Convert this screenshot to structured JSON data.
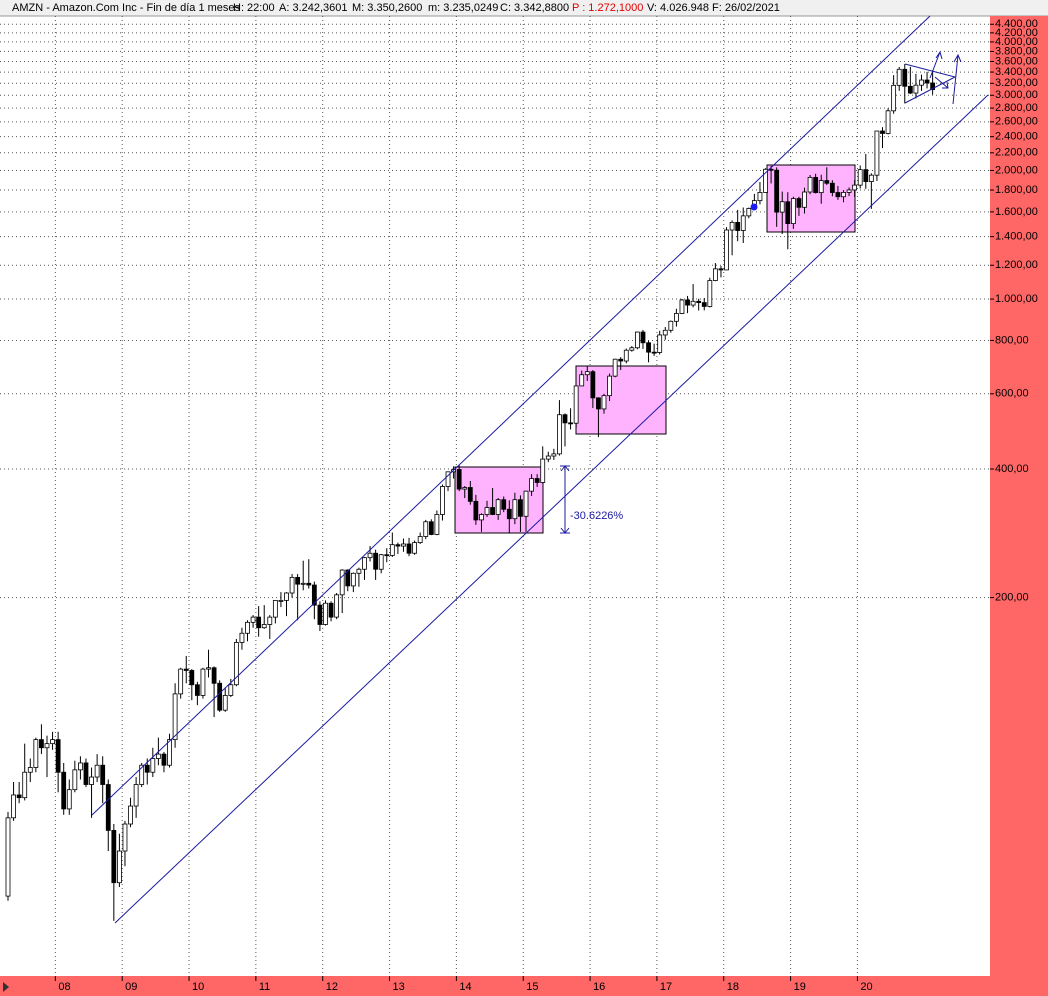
{
  "header": {
    "title": "AMZN - Amazon.Com Inc - Fin de día 1 meses",
    "fields": [
      "H: 22:00",
      "A: 3.242,3601",
      "M: 3.350,2600",
      "m: 3.235,0249",
      "C: 3.342,8800",
      "P : 1.272,1000",
      "V: 4.026.948",
      "F: 26/02/2021"
    ]
  },
  "chart_data": {
    "type": "candlestick",
    "log_scale": true,
    "grid": true,
    "up_color": "#ffffff",
    "down_color": "#000000",
    "ylim": [
      26,
      4600
    ],
    "yticks": [
      {
        "value": 200,
        "label": "200,00"
      },
      {
        "value": 400,
        "label": "400,00"
      },
      {
        "value": 600,
        "label": "600,00"
      },
      {
        "value": 800,
        "label": "800,00"
      },
      {
        "value": 1000,
        "label": "1.000,00"
      },
      {
        "value": 1200,
        "label": "1.200,00"
      },
      {
        "value": 1400,
        "label": "1.400,00"
      },
      {
        "value": 1600,
        "label": "1.600,00"
      },
      {
        "value": 1800,
        "label": "1.800,00"
      },
      {
        "value": 2000,
        "label": "2.000,00"
      },
      {
        "value": 2200,
        "label": "2.200,00"
      },
      {
        "value": 2400,
        "label": "2.400,00"
      },
      {
        "value": 2600,
        "label": "2.600,00"
      },
      {
        "value": 2800,
        "label": "2.800,00"
      },
      {
        "value": 3000,
        "label": "3.000,00"
      },
      {
        "value": 3200,
        "label": "3.200,00"
      },
      {
        "value": 3400,
        "label": "3.400,00"
      },
      {
        "value": 3600,
        "label": "3.600,00"
      },
      {
        "value": 3800,
        "label": "3.800,00"
      },
      {
        "value": 4000,
        "label": "4.000,00"
      },
      {
        "value": 4200,
        "label": "4.200,00"
      },
      {
        "value": 4400,
        "label": "4.400,00"
      }
    ],
    "annotations": [
      "-30.6226%"
    ],
    "categories": [
      null,
      null,
      null,
      null,
      null,
      null,
      null,
      null,
      null,
      "08",
      null,
      null,
      null,
      null,
      null,
      null,
      null,
      null,
      null,
      null,
      null,
      "09",
      null,
      null,
      null,
      null,
      null,
      null,
      null,
      null,
      null,
      null,
      null,
      "10",
      null,
      null,
      null,
      null,
      null,
      null,
      null,
      null,
      null,
      null,
      null,
      "11",
      null,
      null,
      null,
      null,
      null,
      null,
      null,
      null,
      null,
      null,
      null,
      "12",
      null,
      null,
      null,
      null,
      null,
      null,
      null,
      null,
      null,
      null,
      null,
      "13",
      null,
      null,
      null,
      null,
      null,
      null,
      null,
      null,
      null,
      null,
      null,
      "14",
      null,
      null,
      null,
      null,
      null,
      null,
      null,
      null,
      null,
      null,
      null,
      "15",
      null,
      null,
      null,
      null,
      null,
      null,
      null,
      null,
      null,
      null,
      null,
      "16",
      null,
      null,
      null,
      null,
      null,
      null,
      null,
      null,
      null,
      null,
      null,
      "17",
      null,
      null,
      null,
      null,
      null,
      null,
      null,
      null,
      null,
      null,
      null,
      "18",
      null,
      null,
      null,
      null,
      null,
      null,
      null,
      null,
      null,
      null,
      null,
      "19",
      null,
      null,
      null,
      null,
      null,
      null,
      null,
      null,
      null,
      null,
      null,
      "20",
      null,
      null,
      null,
      null,
      null,
      null,
      null,
      null,
      null,
      null,
      null,
      null,
      null
    ],
    "ohlc": [
      [
        40,
        63,
        39,
        61
      ],
      [
        61,
        74,
        60,
        69
      ],
      [
        69,
        74,
        66,
        68
      ],
      [
        68,
        91,
        67,
        78
      ],
      [
        78,
        84,
        74,
        80
      ],
      [
        80,
        94,
        78,
        93
      ],
      [
        93,
        101,
        86,
        89
      ],
      [
        89,
        95,
        76,
        91
      ],
      [
        91,
        97,
        88,
        93
      ],
      [
        93,
        97,
        70,
        78
      ],
      [
        78,
        82,
        62,
        64
      ],
      [
        64,
        75,
        62,
        71
      ],
      [
        71,
        83,
        70,
        79
      ],
      [
        79,
        85,
        75,
        82
      ],
      [
        82,
        84,
        72,
        73
      ],
      [
        73,
        80,
        61,
        76
      ],
      [
        76,
        86,
        74,
        81
      ],
      [
        81,
        85,
        66,
        73
      ],
      [
        73,
        75,
        51,
        57
      ],
      [
        57,
        59,
        35,
        43
      ],
      [
        43,
        56,
        42,
        51
      ],
      [
        51,
        60,
        47,
        59
      ],
      [
        59,
        68,
        58,
        65
      ],
      [
        65,
        76,
        61,
        73
      ],
      [
        73,
        82,
        72,
        81
      ],
      [
        81,
        84,
        73,
        78
      ],
      [
        78,
        89,
        76,
        84
      ],
      [
        84,
        94,
        81,
        86
      ],
      [
        86,
        87,
        78,
        81
      ],
      [
        81,
        96,
        80,
        93
      ],
      [
        93,
        126,
        89,
        119
      ],
      [
        119,
        137,
        116,
        136
      ],
      [
        136,
        146,
        126,
        135
      ],
      [
        135,
        136,
        115,
        125
      ],
      [
        125,
        127,
        112,
        118
      ],
      [
        118,
        137,
        116,
        136
      ],
      [
        136,
        151,
        130,
        137
      ],
      [
        137,
        138,
        105,
        126
      ],
      [
        126,
        128,
        108,
        109
      ],
      [
        109,
        123,
        108,
        118
      ],
      [
        118,
        129,
        117,
        125
      ],
      [
        125,
        160,
        124,
        157
      ],
      [
        157,
        170,
        151,
        165
      ],
      [
        165,
        177,
        158,
        175
      ],
      [
        175,
        182,
        170,
        180
      ],
      [
        180,
        191,
        162,
        170
      ],
      [
        170,
        192,
        169,
        173
      ],
      [
        173,
        182,
        160,
        180
      ],
      [
        180,
        197,
        174,
        197
      ],
      [
        197,
        206,
        190,
        197
      ],
      [
        197,
        206,
        181,
        205
      ],
      [
        205,
        227,
        200,
        223
      ],
      [
        223,
        227,
        177,
        215
      ],
      [
        215,
        244,
        208,
        216
      ],
      [
        216,
        246,
        210,
        214
      ],
      [
        214,
        218,
        178,
        192
      ],
      [
        192,
        196,
        167,
        173
      ],
      [
        173,
        197,
        172,
        194
      ],
      [
        194,
        196,
        176,
        180
      ],
      [
        180,
        205,
        178,
        203
      ],
      [
        203,
        233,
        184,
        232
      ],
      [
        232,
        233,
        207,
        213
      ],
      [
        213,
        229,
        206,
        228
      ],
      [
        228,
        235,
        212,
        233
      ],
      [
        233,
        249,
        220,
        248
      ],
      [
        248,
        264,
        243,
        254
      ],
      [
        254,
        259,
        220,
        233
      ],
      [
        233,
        253,
        228,
        252
      ],
      [
        252,
        261,
        242,
        251
      ],
      [
        251,
        284,
        249,
        266
      ],
      [
        266,
        269,
        253,
        264
      ],
      [
        264,
        275,
        256,
        267
      ],
      [
        267,
        276,
        250,
        254
      ],
      [
        254,
        272,
        252,
        269
      ],
      [
        269,
        284,
        267,
        278
      ],
      [
        278,
        304,
        274,
        301
      ],
      [
        301,
        305,
        280,
        281
      ],
      [
        281,
        320,
        280,
        313
      ],
      [
        313,
        368,
        303,
        364
      ],
      [
        364,
        394,
        355,
        394
      ],
      [
        394,
        406,
        380,
        399
      ],
      [
        399,
        408,
        355,
        359
      ],
      [
        359,
        365,
        342,
        362
      ],
      [
        362,
        375,
        330,
        336
      ],
      [
        336,
        348,
        296,
        304
      ],
      [
        304,
        315,
        285,
        313
      ],
      [
        313,
        337,
        309,
        325
      ],
      [
        325,
        361,
        312,
        313
      ],
      [
        313,
        342,
        304,
        339
      ],
      [
        339,
        345,
        317,
        322
      ],
      [
        322,
        338,
        284,
        306
      ],
      [
        306,
        352,
        297,
        339
      ],
      [
        339,
        347,
        285,
        310
      ],
      [
        310,
        356,
        285,
        355
      ],
      [
        355,
        389,
        346,
        380
      ],
      [
        380,
        389,
        363,
        372
      ],
      [
        372,
        452,
        370,
        422
      ],
      [
        422,
        439,
        415,
        429
      ],
      [
        429,
        446,
        420,
        434
      ],
      [
        434,
        580,
        430,
        536
      ],
      [
        536,
        540,
        452,
        513
      ],
      [
        513,
        555,
        495,
        512
      ],
      [
        512,
        627,
        500,
        626
      ],
      [
        626,
        680,
        626,
        665
      ],
      [
        665,
        696,
        643,
        676
      ],
      [
        676,
        682,
        556,
        587
      ],
      [
        587,
        589,
        475,
        553
      ],
      [
        553,
        600,
        539,
        594
      ],
      [
        594,
        669,
        577,
        660
      ],
      [
        660,
        725,
        656,
        723
      ],
      [
        723,
        731,
        682,
        716
      ],
      [
        716,
        766,
        707,
        759
      ],
      [
        759,
        776,
        753,
        769
      ],
      [
        769,
        838,
        763,
        837
      ],
      [
        837,
        847,
        764,
        790
      ],
      [
        790,
        799,
        711,
        751
      ],
      [
        751,
        786,
        736,
        750
      ],
      [
        750,
        843,
        742,
        824
      ],
      [
        824,
        860,
        803,
        845
      ],
      [
        845,
        891,
        834,
        887
      ],
      [
        887,
        949,
        862,
        925
      ],
      [
        925,
        1001,
        922,
        995
      ],
      [
        995,
        1017,
        927,
        968
      ],
      [
        968,
        1084,
        956,
        988
      ],
      [
        988,
        1002,
        940,
        981
      ],
      [
        981,
        1006,
        941,
        961
      ],
      [
        961,
        1122,
        956,
        1105
      ],
      [
        1105,
        1214,
        1101,
        1177
      ],
      [
        1177,
        1195,
        1124,
        1170
      ],
      [
        1170,
        1473,
        1170,
        1451
      ],
      [
        1451,
        1528,
        1266,
        1512
      ],
      [
        1512,
        1617,
        1366,
        1447
      ],
      [
        1447,
        1638,
        1353,
        1566
      ],
      [
        1566,
        1638,
        1546,
        1630
      ],
      [
        1630,
        1763,
        1622,
        1700
      ],
      [
        1700,
        1880,
        1666,
        1777
      ],
      [
        1777,
        2025,
        1777,
        2013
      ],
      [
        2013,
        2050,
        1865,
        2003
      ],
      [
        2003,
        2034,
        1476,
        1598
      ],
      [
        1598,
        1785,
        1420,
        1690
      ],
      [
        1690,
        1779,
        1308,
        1502
      ],
      [
        1502,
        1736,
        1460,
        1719
      ],
      [
        1719,
        1736,
        1566,
        1640
      ],
      [
        1640,
        1823,
        1586,
        1781
      ],
      [
        1781,
        1952,
        1760,
        1927
      ],
      [
        1927,
        1965,
        1767,
        1775
      ],
      [
        1775,
        1955,
        1672,
        1894
      ],
      [
        1894,
        2035,
        1850,
        1867
      ],
      [
        1867,
        1898,
        1740,
        1776
      ],
      [
        1776,
        1840,
        1707,
        1736
      ],
      [
        1736,
        1799,
        1685,
        1777
      ],
      [
        1777,
        1825,
        1742,
        1801
      ],
      [
        1801,
        1901,
        1735,
        1848
      ],
      [
        1848,
        2055,
        1815,
        2009
      ],
      [
        2009,
        2186,
        1811,
        1884
      ],
      [
        1884,
        1970,
        1626,
        1950
      ],
      [
        1950,
        2475,
        1890,
        2474
      ],
      [
        2474,
        2526,
        2256,
        2442
      ],
      [
        2442,
        2796,
        2430,
        2759
      ],
      [
        2759,
        3344,
        2716,
        3165
      ],
      [
        3165,
        3495,
        3073,
        3451
      ],
      [
        3451,
        3552,
        2871,
        3149
      ],
      [
        3149,
        3497,
        3020,
        3036
      ],
      [
        3036,
        3367,
        2950,
        3168
      ],
      [
        3168,
        3353,
        3072,
        3257
      ],
      [
        3257,
        3404,
        3113,
        3206
      ],
      [
        3206,
        3434,
        3010,
        3093
      ]
    ]
  }
}
